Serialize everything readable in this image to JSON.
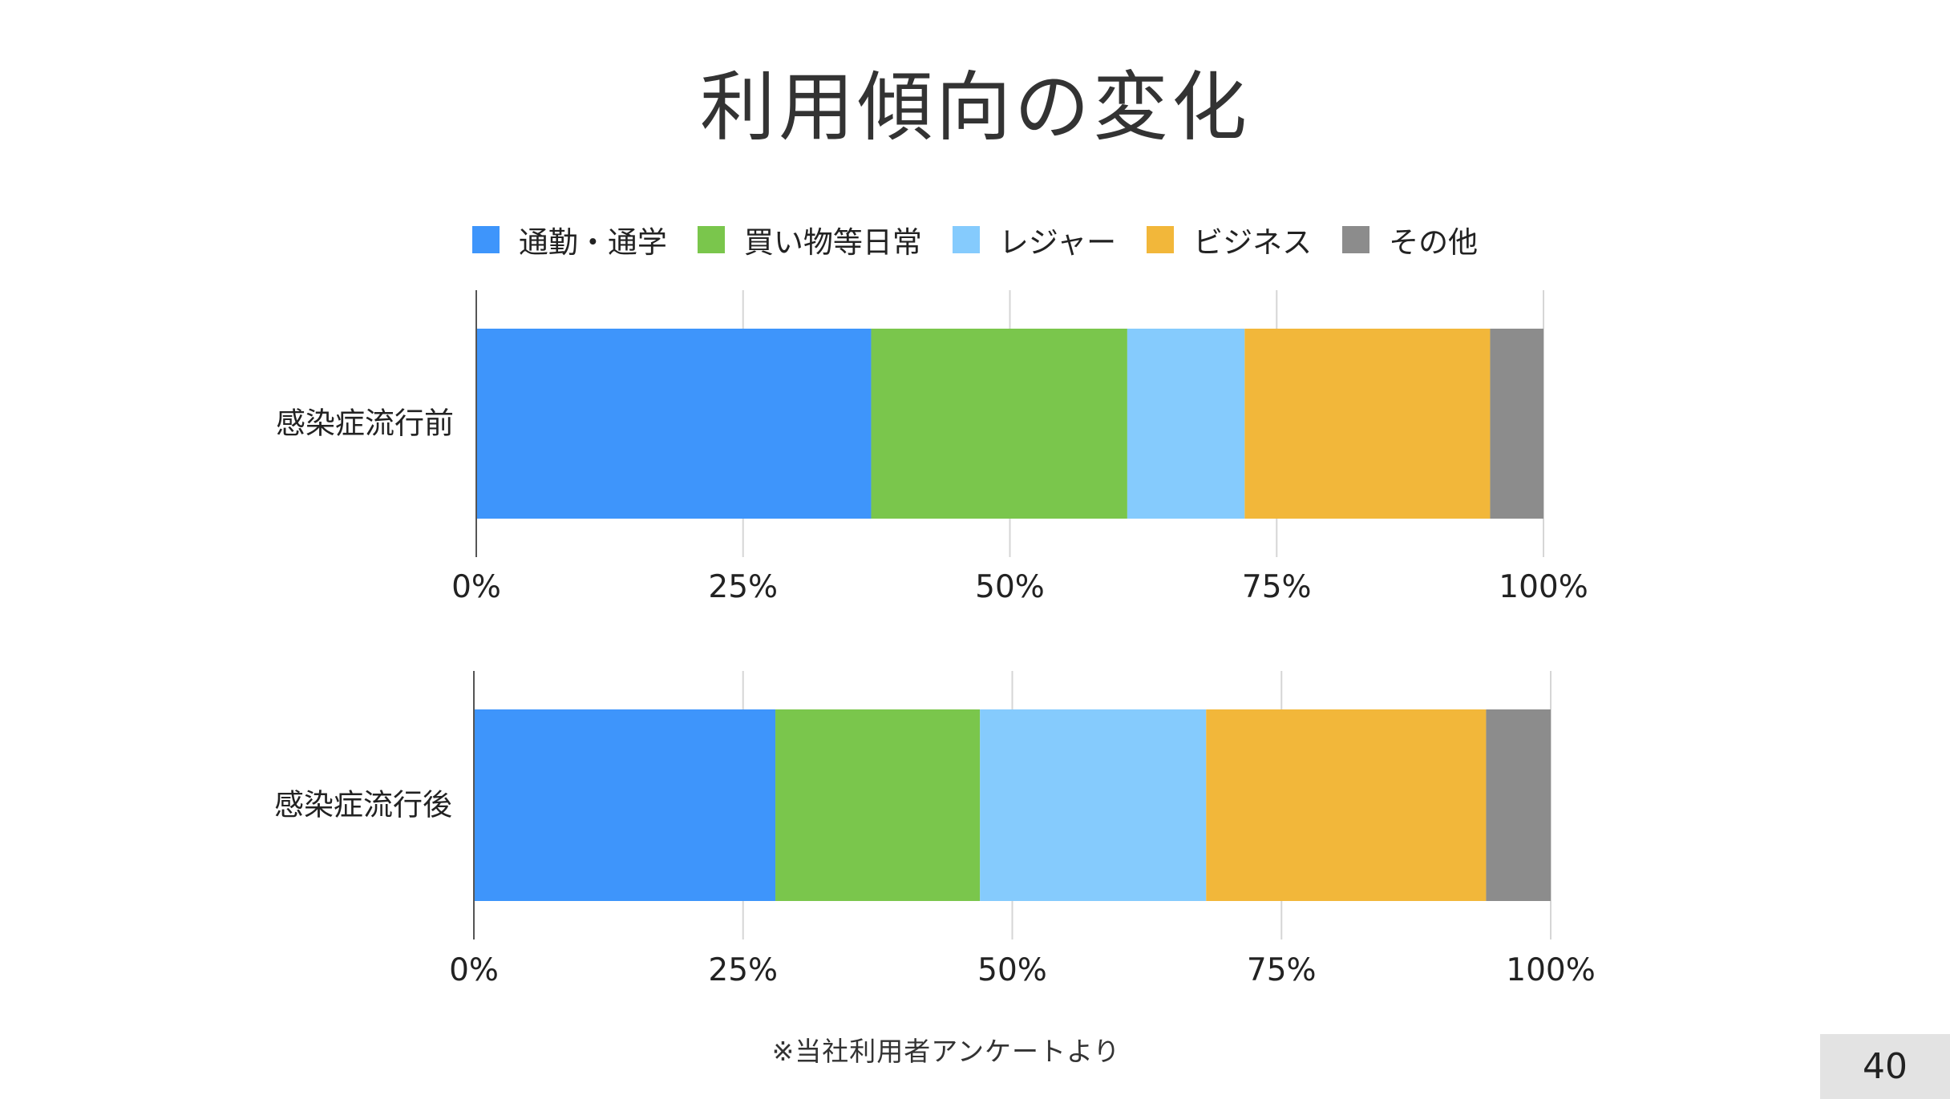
{
  "title": "利用傾向の変化",
  "footnote": "※当社利用者アンケートより",
  "page_number": "40",
  "colors": {
    "commute": "#3e95fb",
    "shopping": "#7ac64c",
    "leisure": "#85cbfd",
    "business": "#f2b73a",
    "other": "#8c8c8c",
    "axis": "#555555",
    "grid": "#d6d6d6"
  },
  "legend": [
    "通勤・通学",
    "買い物等日常",
    "レジャー",
    "ビジネス",
    "その他"
  ],
  "chart_data": [
    {
      "type": "bar",
      "orientation": "horizontal",
      "stacked": "percent",
      "categories": [
        "感染症流行前"
      ],
      "series": [
        {
          "name": "通勤・通学",
          "values": [
            37
          ]
        },
        {
          "name": "買い物等日常",
          "values": [
            24
          ]
        },
        {
          "name": "レジャー",
          "values": [
            11
          ]
        },
        {
          "name": "ビジネス",
          "values": [
            23
          ]
        },
        {
          "name": "その他",
          "values": [
            5
          ]
        }
      ],
      "xlim": [
        0,
        100
      ],
      "xticks": [
        "0%",
        "25%",
        "50%",
        "75%",
        "100%"
      ],
      "grid": true,
      "legend_position": "top"
    },
    {
      "type": "bar",
      "orientation": "horizontal",
      "stacked": "percent",
      "categories": [
        "感染症流行後"
      ],
      "series": [
        {
          "name": "通勤・通学",
          "values": [
            28
          ]
        },
        {
          "name": "買い物等日常",
          "values": [
            19
          ]
        },
        {
          "name": "レジャー",
          "values": [
            21
          ]
        },
        {
          "name": "ビジネス",
          "values": [
            26
          ]
        },
        {
          "name": "その他",
          "values": [
            6
          ]
        }
      ],
      "xlim": [
        0,
        100
      ],
      "xticks": [
        "0%",
        "25%",
        "50%",
        "75%",
        "100%"
      ],
      "grid": true,
      "legend_position": "top"
    }
  ]
}
